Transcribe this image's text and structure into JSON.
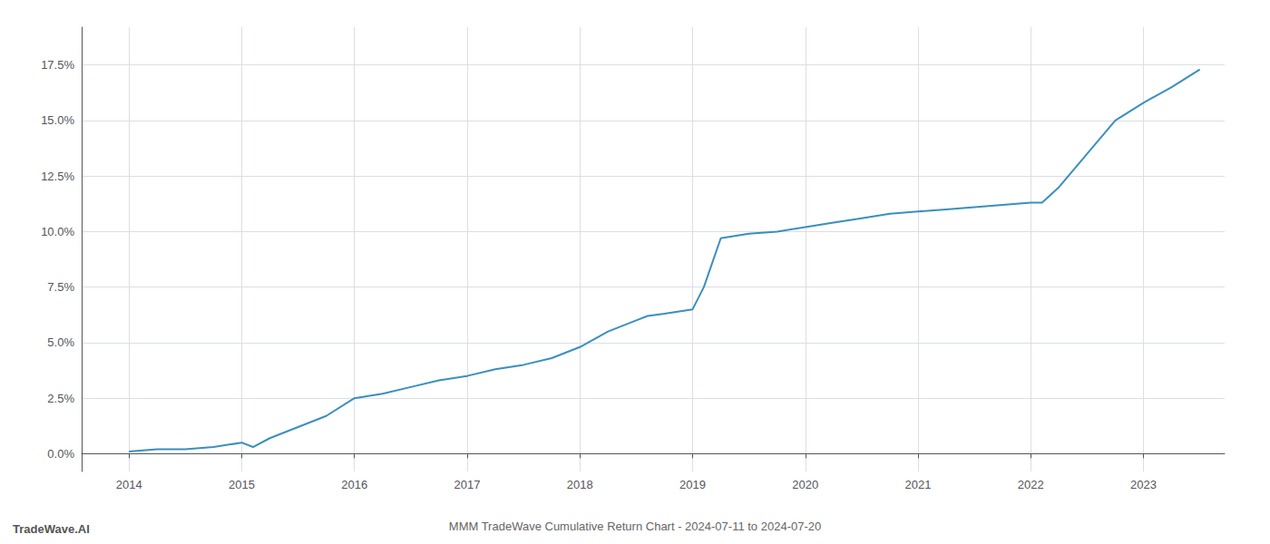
{
  "chart_data": {
    "type": "line",
    "title": "MMM TradeWave Cumulative Return Chart - 2024-07-11 to 2024-07-20",
    "annotations": [
      "TradeWave.AI"
    ],
    "x": [
      2014.0,
      2014.25,
      2014.5,
      2014.75,
      2015.0,
      2015.1,
      2015.25,
      2015.5,
      2015.75,
      2016.0,
      2016.25,
      2016.5,
      2016.75,
      2017.0,
      2017.25,
      2017.5,
      2017.75,
      2018.0,
      2018.25,
      2018.5,
      2018.6,
      2018.75,
      2019.0,
      2019.1,
      2019.25,
      2019.5,
      2019.75,
      2020.0,
      2020.25,
      2020.5,
      2020.75,
      2021.0,
      2021.25,
      2021.5,
      2021.75,
      2022.0,
      2022.1,
      2022.25,
      2022.5,
      2022.75,
      2023.0,
      2023.25,
      2023.5
    ],
    "values": [
      0.001,
      0.002,
      0.002,
      0.003,
      0.005,
      0.003,
      0.007,
      0.012,
      0.017,
      0.025,
      0.027,
      0.03,
      0.033,
      0.035,
      0.038,
      0.04,
      0.043,
      0.048,
      0.055,
      0.06,
      0.062,
      0.063,
      0.065,
      0.075,
      0.097,
      0.099,
      0.1,
      0.102,
      0.104,
      0.106,
      0.108,
      0.109,
      0.11,
      0.111,
      0.112,
      0.113,
      0.113,
      0.12,
      0.135,
      0.15,
      0.158,
      0.165,
      0.173
    ],
    "color": "#3a8fbf",
    "xlim": [
      2013.58,
      2023.72
    ],
    "xticks": [
      2014,
      2015,
      2016,
      2017,
      2018,
      2019,
      2020,
      2021,
      2022,
      2023
    ],
    "ylim": [
      -0.008,
      0.192
    ],
    "yticks": [
      {
        "value": 0.0,
        "label": "0.0%"
      },
      {
        "value": 0.025,
        "label": "2.5%"
      },
      {
        "value": 0.05,
        "label": "5.0%"
      },
      {
        "value": 0.075,
        "label": "7.5%"
      },
      {
        "value": 0.1,
        "label": "10.0%"
      },
      {
        "value": 0.125,
        "label": "12.5%"
      },
      {
        "value": 0.15,
        "label": "15.0%"
      },
      {
        "value": 0.175,
        "label": "17.5%"
      }
    ],
    "grid": true
  }
}
